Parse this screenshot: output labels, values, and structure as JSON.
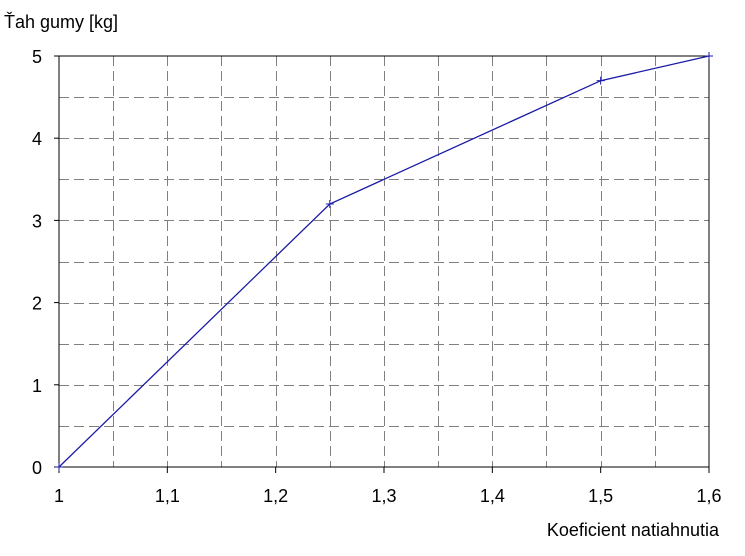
{
  "chart_data": {
    "type": "line",
    "ylabel": "Ťah gumy [kg]",
    "xlabel": "Koeficient natiahnutia",
    "xlim": [
      1,
      1.6
    ],
    "ylim": [
      0,
      5
    ],
    "x_ticks": [
      1,
      1.1,
      1.2,
      1.3,
      1.4,
      1.5,
      1.6
    ],
    "x_tick_labels": [
      "1",
      "1,1",
      "1,2",
      "1,3",
      "1,4",
      "1,5",
      "1,6"
    ],
    "y_ticks": [
      0,
      1,
      2,
      3,
      4,
      5
    ],
    "y_tick_labels": [
      "0",
      "1",
      "2",
      "3",
      "4",
      "5"
    ],
    "x_minor_grid_step": 0.05,
    "y_minor_grid_step": 0.5,
    "grid": true,
    "series": [
      {
        "color": "#1a1aa6",
        "x": [
          1,
          1.25,
          1.5,
          1.6
        ],
        "y": [
          0,
          3.2,
          4.7,
          5
        ]
      }
    ]
  }
}
